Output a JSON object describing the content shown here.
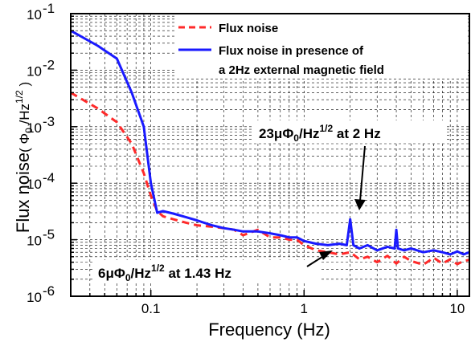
{
  "chart_data": {
    "type": "line",
    "xlabel": "Frequency (Hz)",
    "ylabel": "Flux noise",
    "ylabel_unit": "( Φ0 /Hz1/2 )",
    "x_scale": "log",
    "y_scale": "log",
    "xlim": [
      0.03,
      12
    ],
    "ylim": [
      1e-06,
      0.1
    ],
    "grid": true,
    "legend_position": "top-right",
    "x_ticks": [
      "0.1",
      "1",
      "10"
    ],
    "y_ticks": [
      "10-6",
      "10-5",
      "10-4",
      "10-3",
      "10-2",
      "10-1"
    ],
    "series": [
      {
        "name": "Flux noise",
        "color": "#ff2a2a",
        "style": "dashed",
        "x": [
          0.03,
          0.045,
          0.06,
          0.075,
          0.09,
          0.1,
          0.11,
          0.12,
          0.14,
          0.17,
          0.2,
          0.25,
          0.3,
          0.35,
          0.4,
          0.5,
          0.6,
          0.7,
          0.8,
          0.9,
          1.0,
          1.2,
          1.43,
          1.7,
          2.0,
          2.3,
          2.6,
          3.0,
          3.5,
          4.0,
          4.5,
          5.0,
          6.0,
          7.0,
          8.0,
          9.0,
          10.0,
          11.0,
          12.0
        ],
        "y": [
          0.004,
          0.0021,
          0.0012,
          0.0005,
          0.00015,
          6e-05,
          3.2e-05,
          2.6e-05,
          2.3e-05,
          2e-05,
          1.8e-05,
          1.7e-05,
          1.6e-05,
          1.5e-05,
          1.2e-05,
          1.5e-05,
          1.1e-05,
          1.1e-05,
          1e-05,
          1e-05,
          8e-06,
          6.5e-06,
          6e-06,
          5.5e-06,
          6e-06,
          4.5e-06,
          5e-06,
          4e-06,
          5.2e-06,
          3.8e-06,
          5e-06,
          4.2e-06,
          3.6e-06,
          4.8e-06,
          3.8e-06,
          4.5e-06,
          3.7e-06,
          4.2e-06,
          4.4e-06
        ]
      },
      {
        "name": "Flux noise in presence of a 2Hz external magnetic field",
        "color": "#1a1aff",
        "style": "solid",
        "x": [
          0.03,
          0.045,
          0.06,
          0.075,
          0.09,
          0.1,
          0.11,
          0.12,
          0.14,
          0.17,
          0.2,
          0.25,
          0.3,
          0.35,
          0.4,
          0.5,
          0.6,
          0.7,
          0.8,
          0.9,
          1.0,
          1.2,
          1.43,
          1.7,
          1.9,
          2.0,
          2.1,
          2.3,
          2.6,
          3.0,
          3.5,
          3.9,
          4.0,
          4.1,
          4.5,
          5.0,
          6.0,
          7.0,
          8.0,
          9.0,
          10.0,
          11.0,
          12.0
        ],
        "y": [
          0.05,
          0.027,
          0.016,
          0.004,
          0.001,
          0.0001,
          3e-05,
          3.2e-05,
          2.9e-05,
          2.5e-05,
          2.2e-05,
          1.8e-05,
          1.6e-05,
          1.5e-05,
          1.4e-05,
          1.4e-05,
          1.3e-05,
          1.2e-05,
          1.1e-05,
          1.1e-05,
          9.5e-06,
          8.5e-06,
          8e-06,
          8.5e-06,
          8e-06,
          2.3e-05,
          8e-06,
          7e-06,
          8e-06,
          6.5e-06,
          7.5e-06,
          7e-06,
          1.5e-05,
          7e-06,
          6.5e-06,
          7e-06,
          6e-06,
          6.5e-06,
          6e-06,
          5.5e-06,
          6.2e-06,
          5.5e-06,
          6e-06
        ]
      }
    ],
    "annotations": [
      {
        "text": "23μΦ0/Hz1/2 at 2 Hz",
        "x": 2.0,
        "y": 2.3e-05
      },
      {
        "text": "6μΦ0/Hz1/2 at 1.43 Hz",
        "x": 1.43,
        "y": 6e-06
      }
    ]
  },
  "text": {
    "y_main": "Flux noise",
    "y_unit_open": "( ",
    "y_unit_phi": "Φ",
    "y_unit_zero": "0",
    "y_unit_hz": " /Hz",
    "y_unit_exp": "1/2",
    "y_unit_close": " )",
    "legend_1": "Flux noise",
    "legend_2a": "Flux noise in presence of",
    "legend_2b": "a 2Hz external magnetic field",
    "ann1_num": "23",
    "ann1_mu": "μ",
    "ann1_phi": "Φ",
    "ann1_zero": "0",
    "ann1_hz": "/Hz",
    "ann1_exp": "1/2",
    "ann1_rest": " at 2 Hz",
    "ann2_num": "6",
    "ann2_mu": "μ",
    "ann2_phi": "Φ",
    "ann2_zero": "0",
    "ann2_hz": "/Hz",
    "ann2_exp": "1/2",
    "ann2_rest": " at 1.43 Hz",
    "ytick_base": "10",
    "ytick_exps": [
      "-6",
      "-5",
      "-4",
      "-3",
      "-2",
      "-1"
    ]
  }
}
